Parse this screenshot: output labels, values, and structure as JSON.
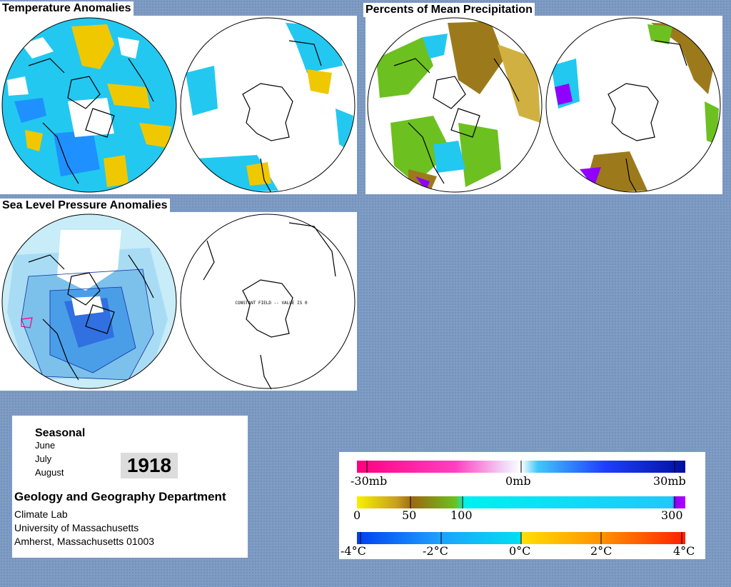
{
  "panels": {
    "temperature": {
      "title": "Temperature Anomalies"
    },
    "precipitation": {
      "title": "Percents of Mean Precipitation"
    },
    "pressure": {
      "title": "Sea Level Pressure Anomalies",
      "southern_note": "CONSTANT FIELD -- VALUE IS 0"
    }
  },
  "info": {
    "season": "Seasonal",
    "months": [
      "June",
      "July",
      "August"
    ],
    "year": "1918",
    "department": "Geology and Geography Department",
    "address_lines": [
      "Climate Lab",
      "University of Massachusetts",
      "Amherst, Massachusetts 01003"
    ]
  },
  "legends": {
    "pressure": {
      "labels": [
        "-30mb",
        "0mb",
        "30mb"
      ]
    },
    "precipitation": {
      "labels": [
        "0",
        "50",
        "100",
        "300"
      ]
    },
    "temperature": {
      "labels": [
        "-4°C",
        "-2°C",
        "0°C",
        "2°C",
        "4°C"
      ]
    }
  },
  "colors": {
    "background": "#7f9cc4",
    "cold": "#1ea0ff",
    "cool": "#00d8f0",
    "warm": "#f0c800",
    "hot": "#ff3000",
    "dry": "#9c7a1c",
    "wet_green": "#6cc020",
    "very_wet": "#9000ff",
    "pressure_low": "#0a2cff",
    "pressure_high": "#ff0080"
  }
}
